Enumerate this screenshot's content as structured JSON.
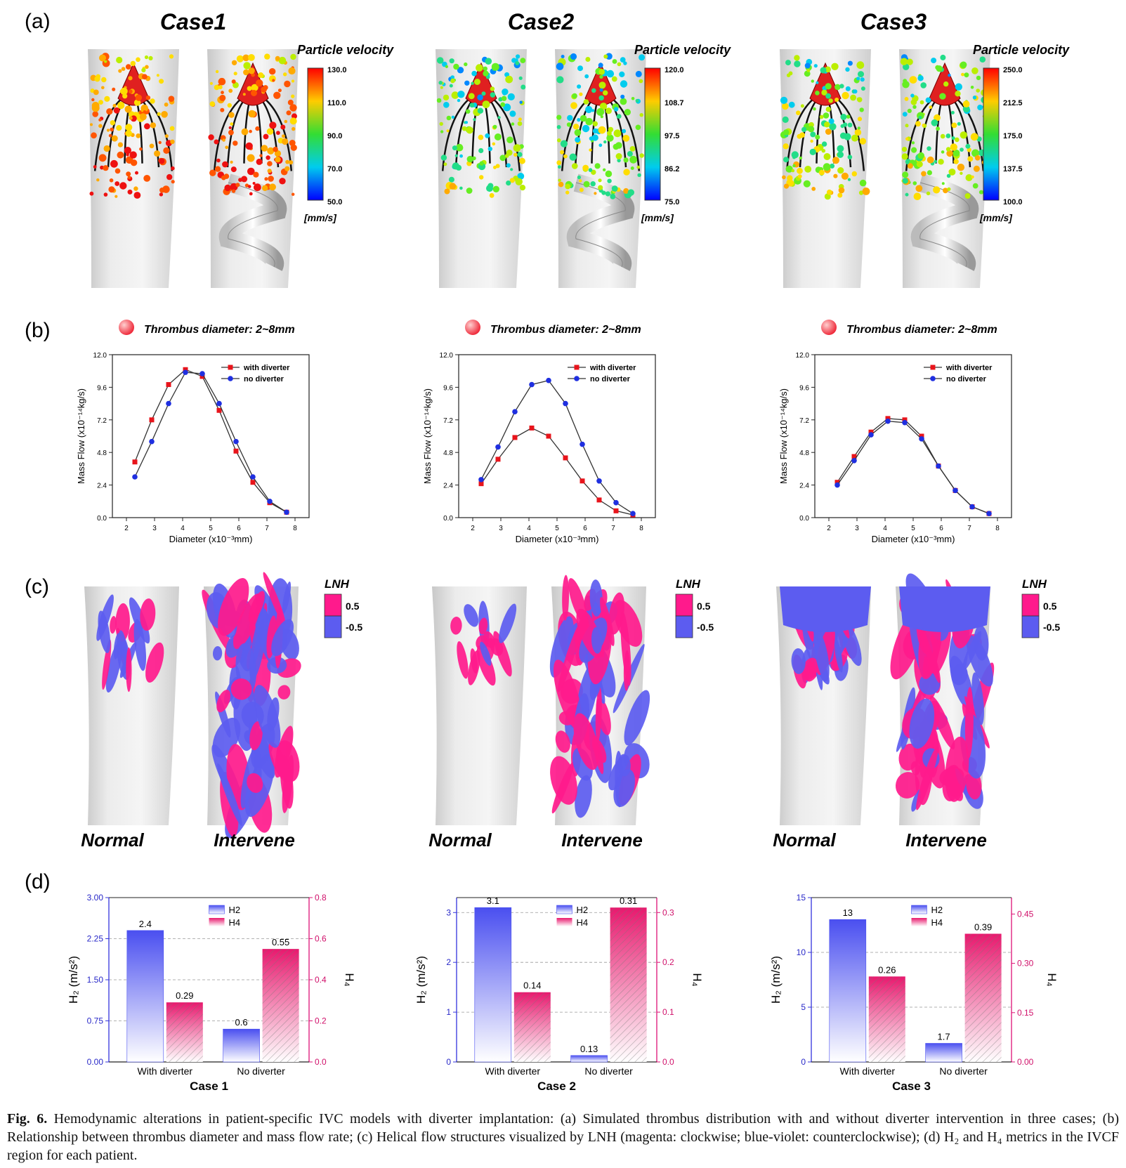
{
  "panel_labels": [
    "(a)",
    "(b)",
    "(c)",
    "(d)"
  ],
  "cases": [
    "Case1",
    "Case2",
    "Case3"
  ],
  "velocity_legend": [
    {
      "title": "Particle velocity",
      "ticks": [
        "130.0",
        "110.0",
        "90.0",
        "70.0",
        "50.0"
      ],
      "unit": "[mm/s]"
    },
    {
      "title": "Particle velocity",
      "ticks": [
        "120.0",
        "108.7",
        "97.5",
        "86.2",
        "75.0"
      ],
      "unit": "[mm/s]"
    },
    {
      "title": "Particle velocity",
      "ticks": [
        "250.0",
        "212.5",
        "175.0",
        "137.5",
        "100.0"
      ],
      "unit": "[mm/s]"
    }
  ],
  "thrombus_label": "Thrombus diameter: 2~8mm",
  "lnh_legend": {
    "title": "LNH",
    "pos": "0.5",
    "neg": "-0.5"
  },
  "row_c_labels": [
    "Normal",
    "Intervene"
  ],
  "colors": {
    "with_diverter": "#e8141b",
    "no_diverter": "#1f2fe0",
    "h2": "#4b52ee",
    "h4": "#e8196e",
    "lnh_pos": "#ff1a8c",
    "lnh_neg": "#5c5cf0"
  },
  "chart_data": [
    {
      "type": "line",
      "xlabel": "Diameter (x10⁻³mm)",
      "ylabel": "Mass Flow (x10⁻¹⁴kg/s)",
      "xlim": [
        1.5,
        8.5
      ],
      "ylim": [
        0,
        12
      ],
      "xticks": [
        "2",
        "3",
        "4",
        "5",
        "6",
        "7",
        "8"
      ],
      "yticks": [
        "0.0",
        "2.4",
        "4.8",
        "7.2",
        "9.6",
        "12.0"
      ],
      "legend": "top-right",
      "x": [
        2.3,
        2.9,
        3.5,
        4.1,
        4.7,
        5.3,
        5.9,
        6.5,
        7.1,
        7.7
      ],
      "series": [
        {
          "name": "with diverter",
          "values": [
            4.1,
            7.2,
            9.8,
            10.9,
            10.4,
            7.9,
            4.9,
            2.6,
            1.1,
            0.4
          ]
        },
        {
          "name": "no diverter",
          "values": [
            3.0,
            5.6,
            8.4,
            10.7,
            10.6,
            8.4,
            5.6,
            3.0,
            1.2,
            0.4
          ]
        }
      ]
    },
    {
      "type": "line",
      "xlabel": "Diameter (x10⁻³mm)",
      "ylabel": "Mass Flow (x10⁻¹⁴kg/s)",
      "xlim": [
        1.5,
        8.5
      ],
      "ylim": [
        0,
        12
      ],
      "xticks": [
        "2",
        "3",
        "4",
        "5",
        "6",
        "7",
        "8"
      ],
      "yticks": [
        "0.0",
        "2.4",
        "4.8",
        "7.2",
        "9.6",
        "12.0"
      ],
      "legend": "top-right",
      "x": [
        2.3,
        2.9,
        3.5,
        4.1,
        4.7,
        5.3,
        5.9,
        6.5,
        7.1,
        7.7
      ],
      "series": [
        {
          "name": "with diverter",
          "values": [
            2.5,
            4.3,
            5.9,
            6.6,
            6.0,
            4.4,
            2.7,
            1.3,
            0.5,
            0.2
          ]
        },
        {
          "name": "no diverter",
          "values": [
            2.8,
            5.2,
            7.8,
            9.8,
            10.1,
            8.4,
            5.4,
            2.7,
            1.1,
            0.3
          ]
        }
      ]
    },
    {
      "type": "line",
      "xlabel": "Diameter (x10⁻³mm)",
      "ylabel": "Mass Flow (x10⁻¹⁴kg/s)",
      "xlim": [
        1.5,
        8.5
      ],
      "ylim": [
        0,
        12
      ],
      "xticks": [
        "2",
        "3",
        "4",
        "5",
        "6",
        "7",
        "8"
      ],
      "yticks": [
        "0.0",
        "2.4",
        "4.8",
        "7.2",
        "9.6",
        "12.0"
      ],
      "legend": "top-right",
      "x": [
        2.3,
        2.9,
        3.5,
        4.1,
        4.7,
        5.3,
        5.9,
        6.5,
        7.1,
        7.7
      ],
      "series": [
        {
          "name": "with diverter",
          "values": [
            2.6,
            4.5,
            6.3,
            7.3,
            7.2,
            6.0,
            3.8,
            2.0,
            0.8,
            0.3
          ]
        },
        {
          "name": "no diverter",
          "values": [
            2.4,
            4.2,
            6.1,
            7.1,
            7.0,
            5.8,
            3.8,
            2.0,
            0.8,
            0.3
          ]
        }
      ]
    },
    {
      "type": "bar",
      "title": "Case 1",
      "categories": [
        "With diverter",
        "No diverter"
      ],
      "ylabel_left": "H₂ (m/s²)",
      "ylabel_right": "H₄",
      "ylim_left": [
        0,
        3.0
      ],
      "ylim_right": [
        0,
        0.8
      ],
      "yticks_left": [
        "0.00",
        "0.75",
        "1.50",
        "2.25",
        "3.00"
      ],
      "yticks_right": [
        "0.0",
        "0.2",
        "0.4",
        "0.6",
        "0.8"
      ],
      "legend": "top-center",
      "series": [
        {
          "name": "H2",
          "axis": "left",
          "values": [
            2.4,
            0.6
          ],
          "labels": [
            "2.4",
            "0.6"
          ]
        },
        {
          "name": "H4",
          "axis": "right",
          "values": [
            0.29,
            0.55
          ],
          "labels": [
            "0.29",
            "0.55"
          ]
        }
      ]
    },
    {
      "type": "bar",
      "title": "Case 2",
      "categories": [
        "With diverter",
        "No diverter"
      ],
      "ylabel_left": "H₂ (m/s²)",
      "ylabel_right": "H₄",
      "ylim_left": [
        0,
        3.3
      ],
      "ylim_right": [
        0,
        0.33
      ],
      "yticks_left": [
        "0",
        "1",
        "2",
        "3"
      ],
      "yticks_right": [
        "0.0",
        "0.1",
        "0.2",
        "0.3"
      ],
      "legend": "top-center",
      "series": [
        {
          "name": "H2",
          "axis": "left",
          "values": [
            3.1,
            0.13
          ],
          "labels": [
            "3.1",
            "0.13"
          ]
        },
        {
          "name": "H4",
          "axis": "right",
          "values": [
            0.14,
            0.31
          ],
          "labels": [
            "0.14",
            "0.31"
          ]
        }
      ]
    },
    {
      "type": "bar",
      "title": "Case 3",
      "categories": [
        "With diverter",
        "No diverter"
      ],
      "ylabel_left": "H₂ (m/s²)",
      "ylabel_right": "H₄",
      "ylim_left": [
        0,
        15
      ],
      "ylim_right": [
        0,
        0.5
      ],
      "yticks_left": [
        "0",
        "5",
        "10",
        "15"
      ],
      "yticks_right": [
        "0.00",
        "0.15",
        "0.30",
        "0.45"
      ],
      "legend": "top-center",
      "series": [
        {
          "name": "H2",
          "axis": "left",
          "values": [
            13,
            1.7
          ],
          "labels": [
            "13",
            "1.7"
          ]
        },
        {
          "name": "H4",
          "axis": "right",
          "values": [
            0.26,
            0.39
          ],
          "labels": [
            "0.26",
            "0.39"
          ]
        }
      ]
    }
  ],
  "caption": {
    "label": "Fig. 6.",
    "text": " Hemodynamic alterations in patient-specific IVC models with diverter implantation: (a) Simulated thrombus distribution with and without diverter intervention in three cases; (b) Relationship between thrombus diameter and mass flow rate; (c) Helical flow structures visualized by LNH (magenta: clockwise; blue-violet: counterclockwise); (d) H₂ and H₄ metrics in the IVCF region for each patient."
  }
}
